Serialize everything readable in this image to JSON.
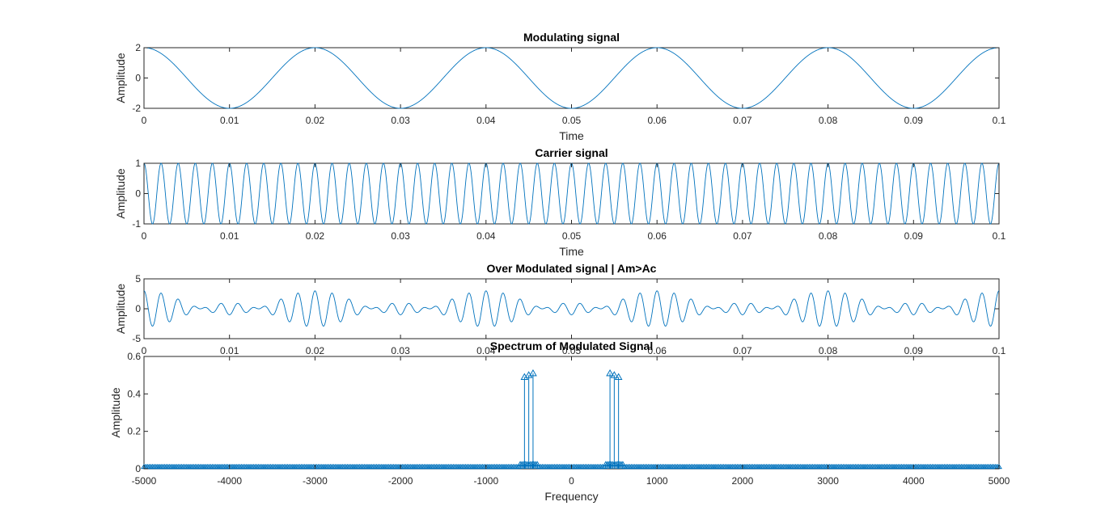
{
  "figure": {
    "background": "#ffffff",
    "line_color": "#0072bd",
    "axis_color": "#262626"
  },
  "chart_data": [
    {
      "type": "line",
      "title": "Modulating signal",
      "xlabel": "Time",
      "ylabel": "Amplitude",
      "xlim": [
        0,
        0.1
      ],
      "ylim": [
        -2,
        2
      ],
      "xticks": [
        "0",
        "0.01",
        "0.02",
        "0.03",
        "0.04",
        "0.05",
        "0.06",
        "0.07",
        "0.08",
        "0.09",
        "0.1"
      ],
      "yticks": [
        "-2",
        "0",
        "2"
      ],
      "signal": {
        "form": "cosine",
        "amplitude": 2,
        "frequency_hz": 50
      },
      "grid": false
    },
    {
      "type": "line",
      "title": "Carrier signal",
      "xlabel": "Time",
      "ylabel": "Amplitude",
      "xlim": [
        0,
        0.1
      ],
      "ylim": [
        -1,
        1
      ],
      "xticks": [
        "0",
        "0.01",
        "0.02",
        "0.03",
        "0.04",
        "0.05",
        "0.06",
        "0.07",
        "0.08",
        "0.09",
        "0.1"
      ],
      "yticks": [
        "-1",
        "0",
        "1"
      ],
      "signal": {
        "form": "cosine",
        "amplitude": 1,
        "frequency_hz": 500
      },
      "grid": false
    },
    {
      "type": "line",
      "title": "Over Modulated signal | Am>Ac",
      "xlabel": "",
      "ylabel": "Amplitude",
      "xlim": [
        0,
        0.1
      ],
      "ylim": [
        -5,
        5
      ],
      "xticks": [
        "0",
        "0.01",
        "0.02",
        "0.03",
        "0.04",
        "0.05",
        "0.06",
        "0.07",
        "0.08",
        "0.09",
        "0.1"
      ],
      "yticks": [
        "-5",
        "0",
        "5"
      ],
      "signal": {
        "form": "am_overmodulated",
        "carrier_amplitude": 1,
        "message_amplitude": 2,
        "carrier_hz": 500,
        "message_hz": 50
      },
      "grid": false
    },
    {
      "type": "stem",
      "title": "Spectrum of Modulated Signal",
      "xlabel": "Frequency",
      "ylabel": "Amplitude",
      "xlim": [
        -5000,
        5000
      ],
      "ylim": [
        0,
        0.6
      ],
      "xticks": [
        "-5000",
        "-4000",
        "-3000",
        "-2000",
        "-1000",
        "0",
        "1000",
        "2000",
        "3000",
        "4000",
        "5000"
      ],
      "yticks": [
        "0",
        "0.2",
        "0.4",
        "0.6"
      ],
      "peaks": [
        {
          "x": -550,
          "y": 0.49
        },
        {
          "x": -500,
          "y": 0.5
        },
        {
          "x": -450,
          "y": 0.51
        },
        {
          "x": 450,
          "y": 0.51
        },
        {
          "x": 500,
          "y": 0.5
        },
        {
          "x": 550,
          "y": 0.49
        }
      ],
      "baseline_level": 0.01,
      "grid": false
    }
  ]
}
